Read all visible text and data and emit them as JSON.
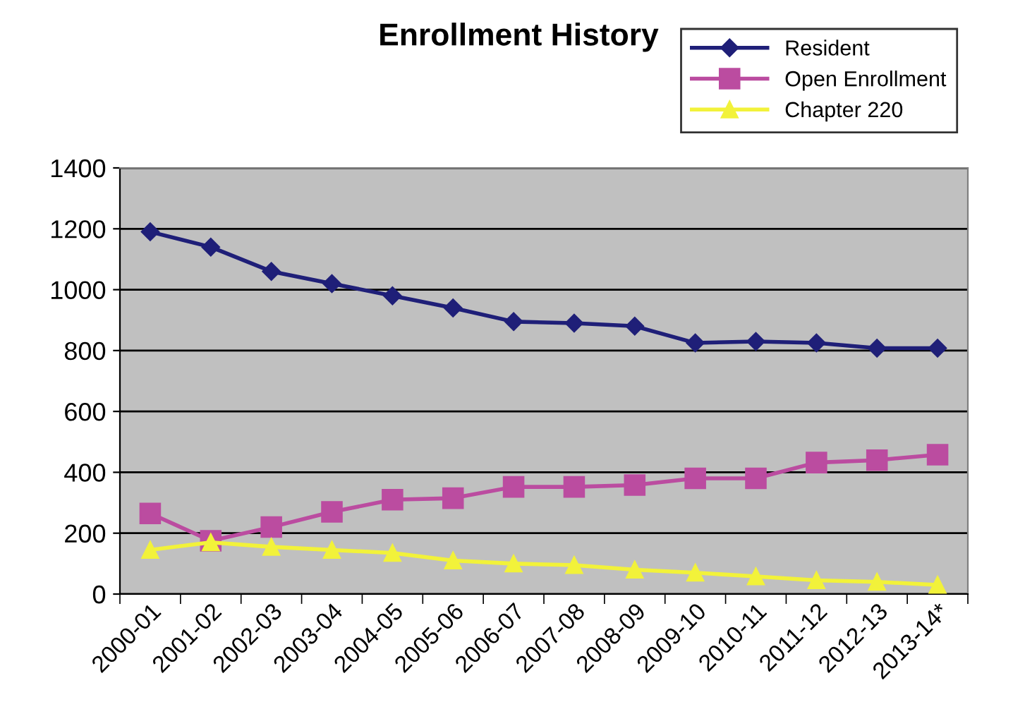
{
  "chart_data": {
    "type": "line",
    "title": "Enrollment History",
    "categories": [
      "2000-01",
      "2001-02",
      "2002-03",
      "2003-04",
      "2004-05",
      "2005-06",
      "2006-07",
      "2007-08",
      "2008-09",
      "2009-10",
      "2010-11",
      "2011-12",
      "2012-13",
      "2013-14*"
    ],
    "series": [
      {
        "name": "Resident",
        "color": "#1f1f78",
        "marker": "diamond",
        "values": [
          1190,
          1140,
          1060,
          1020,
          980,
          940,
          895,
          890,
          880,
          825,
          830,
          825,
          808,
          808
        ]
      },
      {
        "name": "Open Enrollment",
        "color": "#bb4ca0",
        "marker": "square",
        "values": [
          265,
          175,
          220,
          270,
          310,
          315,
          352,
          352,
          358,
          380,
          380,
          432,
          440,
          458
        ]
      },
      {
        "name": "Chapter 220",
        "color": "#f2f23a",
        "marker": "triangle",
        "values": [
          145,
          170,
          155,
          145,
          135,
          110,
          100,
          95,
          80,
          70,
          58,
          45,
          40,
          30
        ]
      }
    ],
    "ylim": [
      0,
      1400
    ],
    "yticks": [
      0,
      200,
      400,
      600,
      800,
      1000,
      1200,
      1400
    ],
    "grid": "y",
    "legend": "top right",
    "line_style": "solid"
  }
}
